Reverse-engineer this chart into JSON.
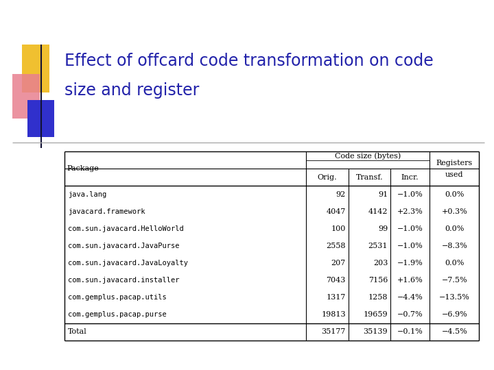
{
  "title_line1": "Effect of offcard code transformation on code",
  "title_line2": "size and register",
  "title_color": "#2222aa",
  "title_fontsize": 17,
  "bg_color": "#ffffff",
  "accent_yellow": "#f0c030",
  "accent_pink": "#e88090",
  "accent_blue": "#3030cc",
  "col_headers_row1_left": "Package",
  "col_headers_row1_center": "Code size (bytes)",
  "col_headers_row1_right1": "Registers",
  "col_headers_row1_right2": "used",
  "col_headers_row2": [
    "Orig.",
    "Transf.",
    "Incr."
  ],
  "rows": [
    [
      "java.lang",
      "92",
      "91",
      "−1.0%",
      "0.0%"
    ],
    [
      "javacard.framework",
      "4047",
      "4142",
      "+2.3%",
      "+0.3%"
    ],
    [
      "com.sun.javacard.HelloWorld",
      "100",
      "99",
      "−1.0%",
      "0.0%"
    ],
    [
      "com.sun.javacard.JavaPurse",
      "2558",
      "2531",
      "−1.0%",
      "−8.3%"
    ],
    [
      "com.sun.javacard.JavaLoyalty",
      "207",
      "203",
      "−1.9%",
      "0.0%"
    ],
    [
      "com.sun.javacard.installer",
      "7043",
      "7156",
      "+1.6%",
      "−7.5%"
    ],
    [
      "com.gemplus.pacap.utils",
      "1317",
      "1258",
      "−4.4%",
      "−13.5%"
    ],
    [
      "com.gemplus.pacap.purse",
      "19813",
      "19659",
      "−0.7%",
      "−6.9%"
    ]
  ],
  "total_row": [
    "Total",
    "35177",
    "35139",
    "−0.1%",
    "−4.5%"
  ],
  "table_border": "#000000",
  "line_color": "#888888"
}
